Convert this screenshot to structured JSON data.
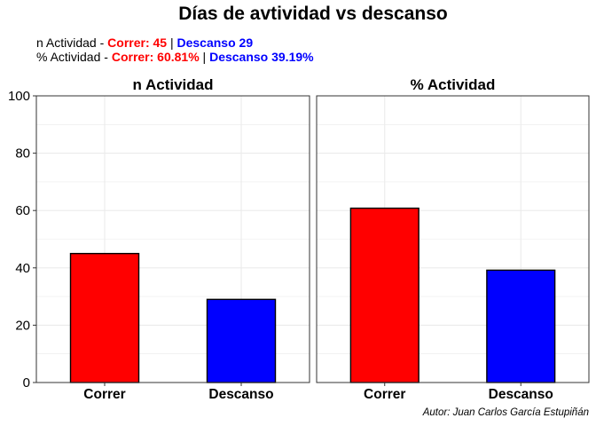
{
  "header": {
    "title": "Días de avtividad vs descanso",
    "subtitle_line1": {
      "prefix": "n Actividad - ",
      "correr": "Correr: 45",
      "sep": " | ",
      "descanso": "Descanso 29"
    },
    "subtitle_line2": {
      "prefix": "% Actividad - ",
      "correr": "Correr: 60.81%",
      "sep": " | ",
      "descanso": "Descanso 39.19%"
    },
    "caption": "Autor: Juan Carlos García Estupiñán"
  },
  "colors": {
    "correr": "#ff0000",
    "descanso": "#0000ff",
    "panel_border": "#333333",
    "grid": "#ebebeb"
  },
  "chart_data": [
    {
      "type": "bar",
      "title": "n Actividad",
      "categories": [
        "Correr",
        "Descanso"
      ],
      "values": [
        45,
        29
      ],
      "ylim": [
        0,
        100
      ],
      "yticks": [
        0,
        20,
        40,
        60,
        80,
        100
      ],
      "grid": true
    },
    {
      "type": "bar",
      "title": "% Actividad",
      "categories": [
        "Correr",
        "Descanso"
      ],
      "values": [
        60.81,
        39.19
      ],
      "ylim": [
        0,
        100
      ],
      "yticks": [
        0,
        20,
        40,
        60,
        80,
        100
      ],
      "grid": true
    }
  ]
}
